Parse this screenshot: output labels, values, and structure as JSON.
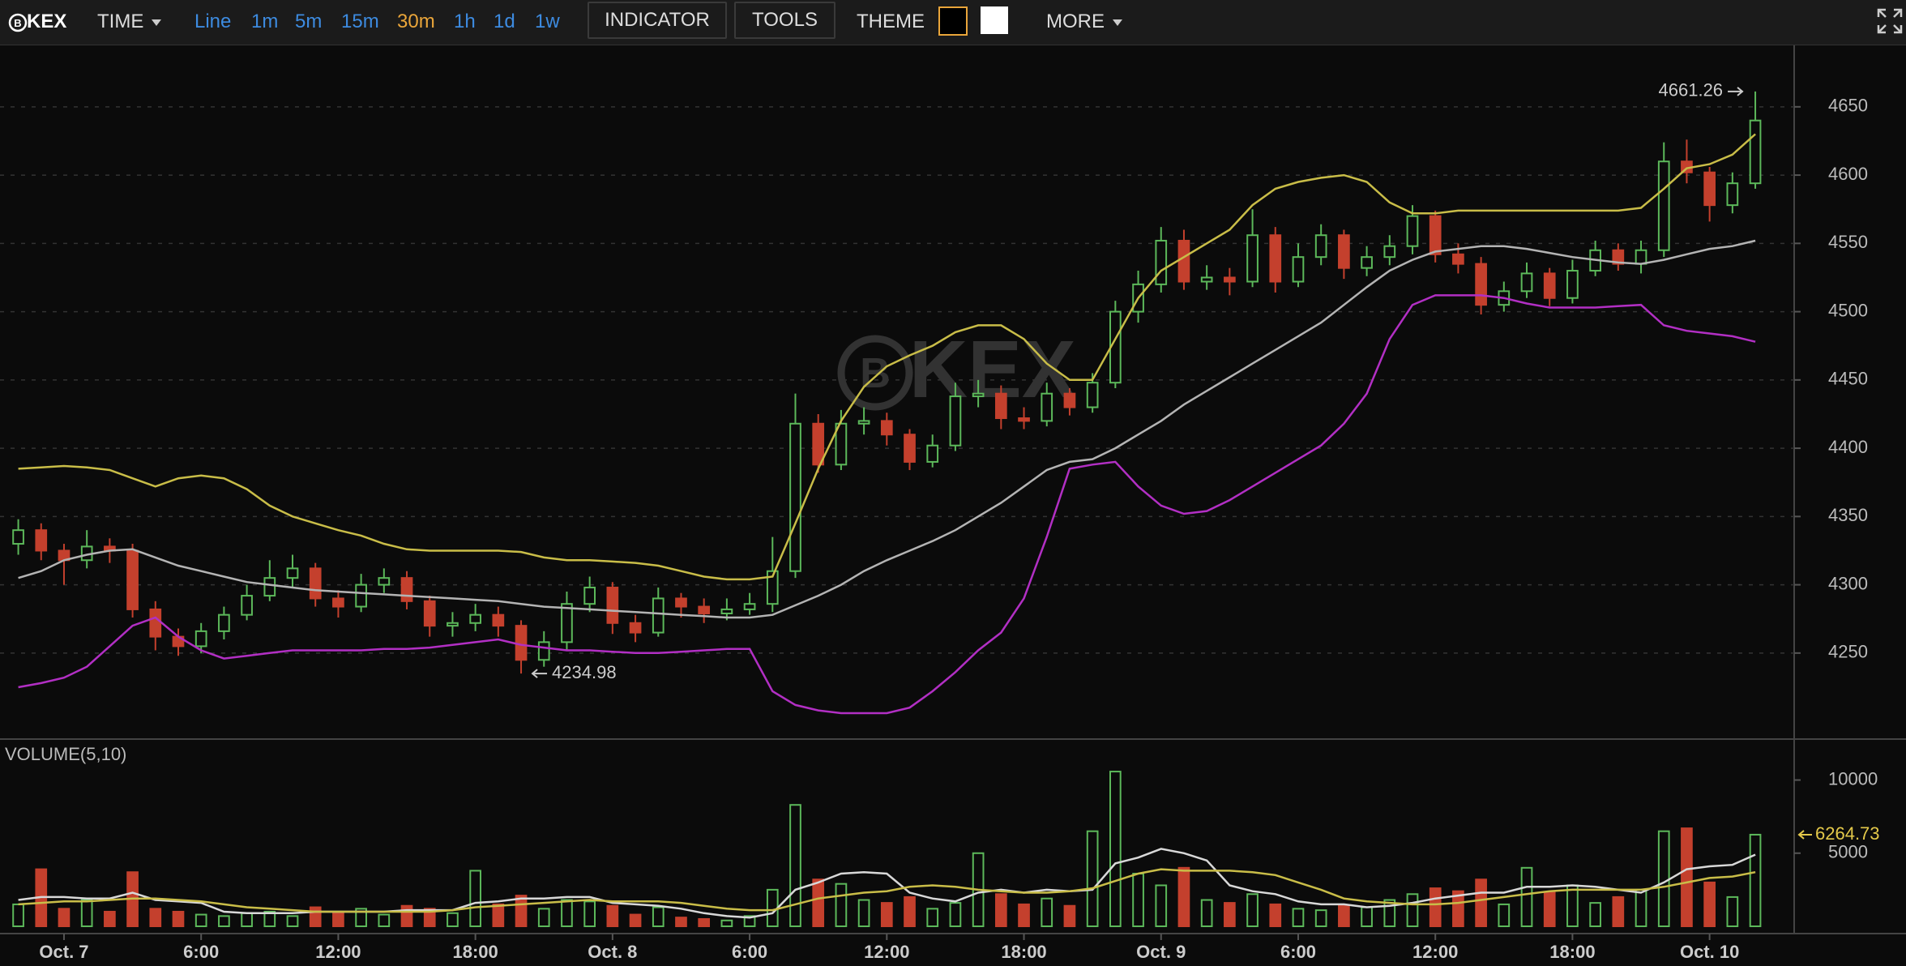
{
  "toolbar": {
    "logo": "KEX",
    "time": "TIME",
    "periods": [
      "Line",
      "1m",
      "5m",
      "15m",
      "30m",
      "1h",
      "1d",
      "1w"
    ],
    "indicator": "INDICATOR",
    "tools": "TOOLS",
    "theme": "THEME",
    "more": "MORE"
  },
  "chart_data": [
    {
      "type": "candlestick",
      "watermark": "KEX",
      "up_color": "#5cb85a",
      "down_color": "#c4402d",
      "open": [
        4330,
        4340,
        4325,
        4318,
        4328,
        4325,
        4282,
        4262,
        4255,
        4266,
        4278,
        4292,
        4305,
        4312,
        4290,
        4284,
        4300,
        4305,
        4288,
        4270,
        4272,
        4278,
        4270,
        4245,
        4258,
        4286,
        4298,
        4272,
        4265,
        4290,
        4284,
        4279,
        4282,
        4286,
        4310,
        4418,
        4388,
        4418,
        4420,
        4410,
        4390,
        4402,
        4438,
        4440,
        4422,
        4420,
        4440,
        4430,
        4448,
        4500,
        4520,
        4552,
        4522,
        4525,
        4522,
        4556,
        4522,
        4540,
        4556,
        4532,
        4540,
        4548,
        4570,
        4542,
        4535,
        4505,
        4515,
        4528,
        4510,
        4530,
        4545,
        4535,
        4545,
        4610,
        4602,
        4578,
        4594
      ],
      "high": [
        4348,
        4345,
        4330,
        4340,
        4334,
        4330,
        4288,
        4268,
        4272,
        4284,
        4300,
        4318,
        4322,
        4316,
        4296,
        4308,
        4312,
        4310,
        4292,
        4280,
        4286,
        4284,
        4274,
        4266,
        4295,
        4306,
        4302,
        4278,
        4298,
        4294,
        4290,
        4290,
        4294,
        4335,
        4440,
        4425,
        4428,
        4430,
        4426,
        4414,
        4410,
        4448,
        4450,
        4446,
        4430,
        4448,
        4444,
        4455,
        4508,
        4530,
        4562,
        4560,
        4534,
        4532,
        4575,
        4562,
        4550,
        4564,
        4560,
        4548,
        4556,
        4578,
        4574,
        4550,
        4540,
        4522,
        4536,
        4532,
        4538,
        4552,
        4550,
        4552,
        4624,
        4626,
        4606,
        4602,
        4661.26
      ],
      "low": [
        4322,
        4318,
        4300,
        4312,
        4316,
        4276,
        4252,
        4248,
        4250,
        4260,
        4274,
        4288,
        4298,
        4284,
        4276,
        4280,
        4294,
        4282,
        4262,
        4262,
        4266,
        4262,
        4234.98,
        4240,
        4252,
        4280,
        4264,
        4258,
        4262,
        4276,
        4272,
        4274,
        4278,
        4280,
        4305,
        4382,
        4384,
        4410,
        4402,
        4384,
        4386,
        4398,
        4430,
        4414,
        4414,
        4416,
        4424,
        4426,
        4444,
        4492,
        4514,
        4516,
        4516,
        4512,
        4518,
        4514,
        4518,
        4534,
        4524,
        4526,
        4534,
        4542,
        4536,
        4528,
        4498,
        4500,
        4510,
        4504,
        4506,
        4526,
        4530,
        4528,
        4540,
        4594,
        4566,
        4572,
        4590
      ],
      "close": [
        4340,
        4325,
        4318,
        4328,
        4325,
        4282,
        4262,
        4255,
        4266,
        4278,
        4292,
        4305,
        4312,
        4290,
        4284,
        4300,
        4305,
        4288,
        4270,
        4272,
        4278,
        4270,
        4245,
        4258,
        4286,
        4298,
        4272,
        4265,
        4290,
        4284,
        4279,
        4282,
        4286,
        4310,
        4418,
        4388,
        4418,
        4420,
        4410,
        4390,
        4402,
        4438,
        4440,
        4422,
        4420,
        4440,
        4430,
        4448,
        4500,
        4520,
        4552,
        4522,
        4525,
        4522,
        4556,
        4522,
        4540,
        4556,
        4532,
        4540,
        4548,
        4570,
        4542,
        4535,
        4505,
        4515,
        4528,
        4510,
        4530,
        4545,
        4535,
        4545,
        4610,
        4602,
        4578,
        4594,
        4640
      ],
      "overlays": [
        {
          "color": "#c9bd48",
          "values": [
            4385,
            4386,
            4387,
            4386,
            4384,
            4378,
            4372,
            4378,
            4380,
            4378,
            4370,
            4358,
            4350,
            4345,
            4340,
            4336,
            4330,
            4326,
            4325,
            4325,
            4325,
            4325,
            4324,
            4320,
            4318,
            4318,
            4317,
            4316,
            4314,
            4310,
            4306,
            4304,
            4304,
            4306,
            4345,
            4385,
            4420,
            4445,
            4460,
            4468,
            4475,
            4485,
            4490,
            4490,
            4480,
            4462,
            4450,
            4450,
            4480,
            4510,
            4530,
            4540,
            4550,
            4560,
            4578,
            4590,
            4595,
            4598,
            4600,
            4595,
            4580,
            4572,
            4572,
            4574,
            4574,
            4574,
            4574,
            4574,
            4574,
            4574,
            4574,
            4576,
            4590,
            4605,
            4608,
            4615,
            4630
          ]
        },
        {
          "color": "#b4b4b4",
          "values": [
            4305,
            4310,
            4318,
            4322,
            4325,
            4326,
            4320,
            4314,
            4310,
            4306,
            4302,
            4300,
            4298,
            4296,
            4295,
            4294,
            4293,
            4292,
            4291,
            4290,
            4289,
            4288,
            4286,
            4284,
            4283,
            4282,
            4281,
            4280,
            4279,
            4278,
            4277,
            4276,
            4276,
            4278,
            4285,
            4292,
            4300,
            4310,
            4318,
            4325,
            4332,
            4340,
            4350,
            4360,
            4372,
            4384,
            4390,
            4392,
            4400,
            4410,
            4420,
            4432,
            4442,
            4452,
            4462,
            4472,
            4482,
            4492,
            4505,
            4518,
            4530,
            4538,
            4544,
            4546,
            4548,
            4548,
            4546,
            4543,
            4540,
            4538,
            4536,
            4535,
            4538,
            4542,
            4546,
            4548,
            4552
          ]
        },
        {
          "color": "#b22fc4",
          "values": [
            4225,
            4228,
            4232,
            4240,
            4255,
            4270,
            4276,
            4262,
            4252,
            4246,
            4248,
            4250,
            4252,
            4252,
            4252,
            4252,
            4253,
            4253,
            4254,
            4256,
            4258,
            4260,
            4256,
            4254,
            4252,
            4252,
            4251,
            4250,
            4250,
            4251,
            4252,
            4253,
            4253,
            4222,
            4212,
            4208,
            4206,
            4206,
            4206,
            4210,
            4222,
            4236,
            4252,
            4265,
            4290,
            4335,
            4385,
            4388,
            4390,
            4372,
            4358,
            4352,
            4354,
            4362,
            4372,
            4382,
            4392,
            4402,
            4418,
            4440,
            4480,
            4505,
            4512,
            4512,
            4512,
            4510,
            4506,
            4503,
            4503,
            4503,
            4504,
            4505,
            4490,
            4486,
            4484,
            4482,
            4478
          ]
        }
      ],
      "xlim": [
        -0.8,
        77.7
      ],
      "ylim": [
        4187,
        4695
      ],
      "yticks": [
        4250,
        4300,
        4350,
        4400,
        4450,
        4500,
        4550,
        4600,
        4650
      ],
      "grid": true
    },
    {
      "type": "bar",
      "label": "VOLUME(5,10)",
      "values": [
        1500,
        3900,
        1200,
        1800,
        1000,
        3700,
        1200,
        1000,
        800,
        700,
        900,
        1000,
        700,
        1300,
        900,
        1200,
        800,
        1400,
        1200,
        900,
        3800,
        1500,
        2100,
        1200,
        1800,
        1700,
        1400,
        800,
        1300,
        600,
        500,
        400,
        700,
        2500,
        8300,
        3200,
        2900,
        1800,
        1600,
        2000,
        1200,
        1600,
        5000,
        2200,
        1500,
        1900,
        1400,
        6500,
        10580,
        3600,
        2800,
        4000,
        1800,
        1600,
        2200,
        1500,
        1200,
        1100,
        1400,
        1300,
        1800,
        2200,
        2600,
        2400,
        3200,
        1500,
        4000,
        2300,
        2800,
        1600,
        2000,
        2500,
        6500,
        6700,
        3000,
        2000,
        6264.73
      ],
      "overlays": [
        {
          "color": "#d8d8d8",
          "values": [
            1800,
            2000,
            2000,
            1900,
            1900,
            2300,
            1800,
            1700,
            1600,
            1000,
            900,
            900,
            900,
            1000,
            1000,
            1000,
            1000,
            1100,
            1100,
            1100,
            1600,
            1700,
            1900,
            1900,
            2000,
            2000,
            1600,
            1500,
            1400,
            1200,
            900,
            700,
            600,
            900,
            2500,
            3000,
            3600,
            3700,
            3600,
            2300,
            1900,
            1700,
            2300,
            2500,
            2300,
            2500,
            2400,
            2500,
            4300,
            4700,
            5300,
            5000,
            4500,
            2800,
            2400,
            2200,
            1700,
            1500,
            1500,
            1300,
            1400,
            1600,
            1900,
            2100,
            2300,
            2300,
            2700,
            2700,
            2800,
            2700,
            2500,
            2300,
            3000,
            3900,
            4100,
            4200,
            4900
          ]
        },
        {
          "color": "#c9bd48",
          "values": [
            1500,
            1600,
            1700,
            1700,
            1800,
            1900,
            1900,
            1800,
            1700,
            1500,
            1300,
            1200,
            1100,
            1000,
            1000,
            1000,
            1000,
            1000,
            1000,
            1100,
            1300,
            1400,
            1500,
            1600,
            1700,
            1800,
            1700,
            1700,
            1700,
            1600,
            1400,
            1200,
            1100,
            1100,
            1500,
            1900,
            2100,
            2300,
            2400,
            2700,
            2800,
            2700,
            2500,
            2400,
            2300,
            2300,
            2400,
            2600,
            3100,
            3600,
            3900,
            3800,
            3800,
            3800,
            3700,
            3500,
            3000,
            2500,
            1900,
            1700,
            1600,
            1500,
            1500,
            1600,
            1800,
            2000,
            2200,
            2400,
            2500,
            2500,
            2500,
            2500,
            2700,
            3000,
            3300,
            3400,
            3700
          ]
        }
      ],
      "xlim": [
        -0.8,
        77.7
      ],
      "ylim": [
        0,
        12800
      ],
      "yticks": [
        5000,
        10000
      ],
      "xticks": [
        {
          "value": 2,
          "label": "Oct. 7"
        },
        {
          "value": 8,
          "label": "6:00"
        },
        {
          "value": 14,
          "label": "12:00"
        },
        {
          "value": 20,
          "label": "18:00"
        },
        {
          "value": 26,
          "label": "Oct. 8"
        },
        {
          "value": 32,
          "label": "6:00"
        },
        {
          "value": 38,
          "label": "12:00"
        },
        {
          "value": 44,
          "label": "18:00"
        },
        {
          "value": 50,
          "label": "Oct. 9"
        },
        {
          "value": 56,
          "label": "6:00"
        },
        {
          "value": 62,
          "label": "12:00"
        },
        {
          "value": 68,
          "label": "18:00"
        },
        {
          "value": 74,
          "label": "Oct. 10"
        }
      ]
    }
  ]
}
